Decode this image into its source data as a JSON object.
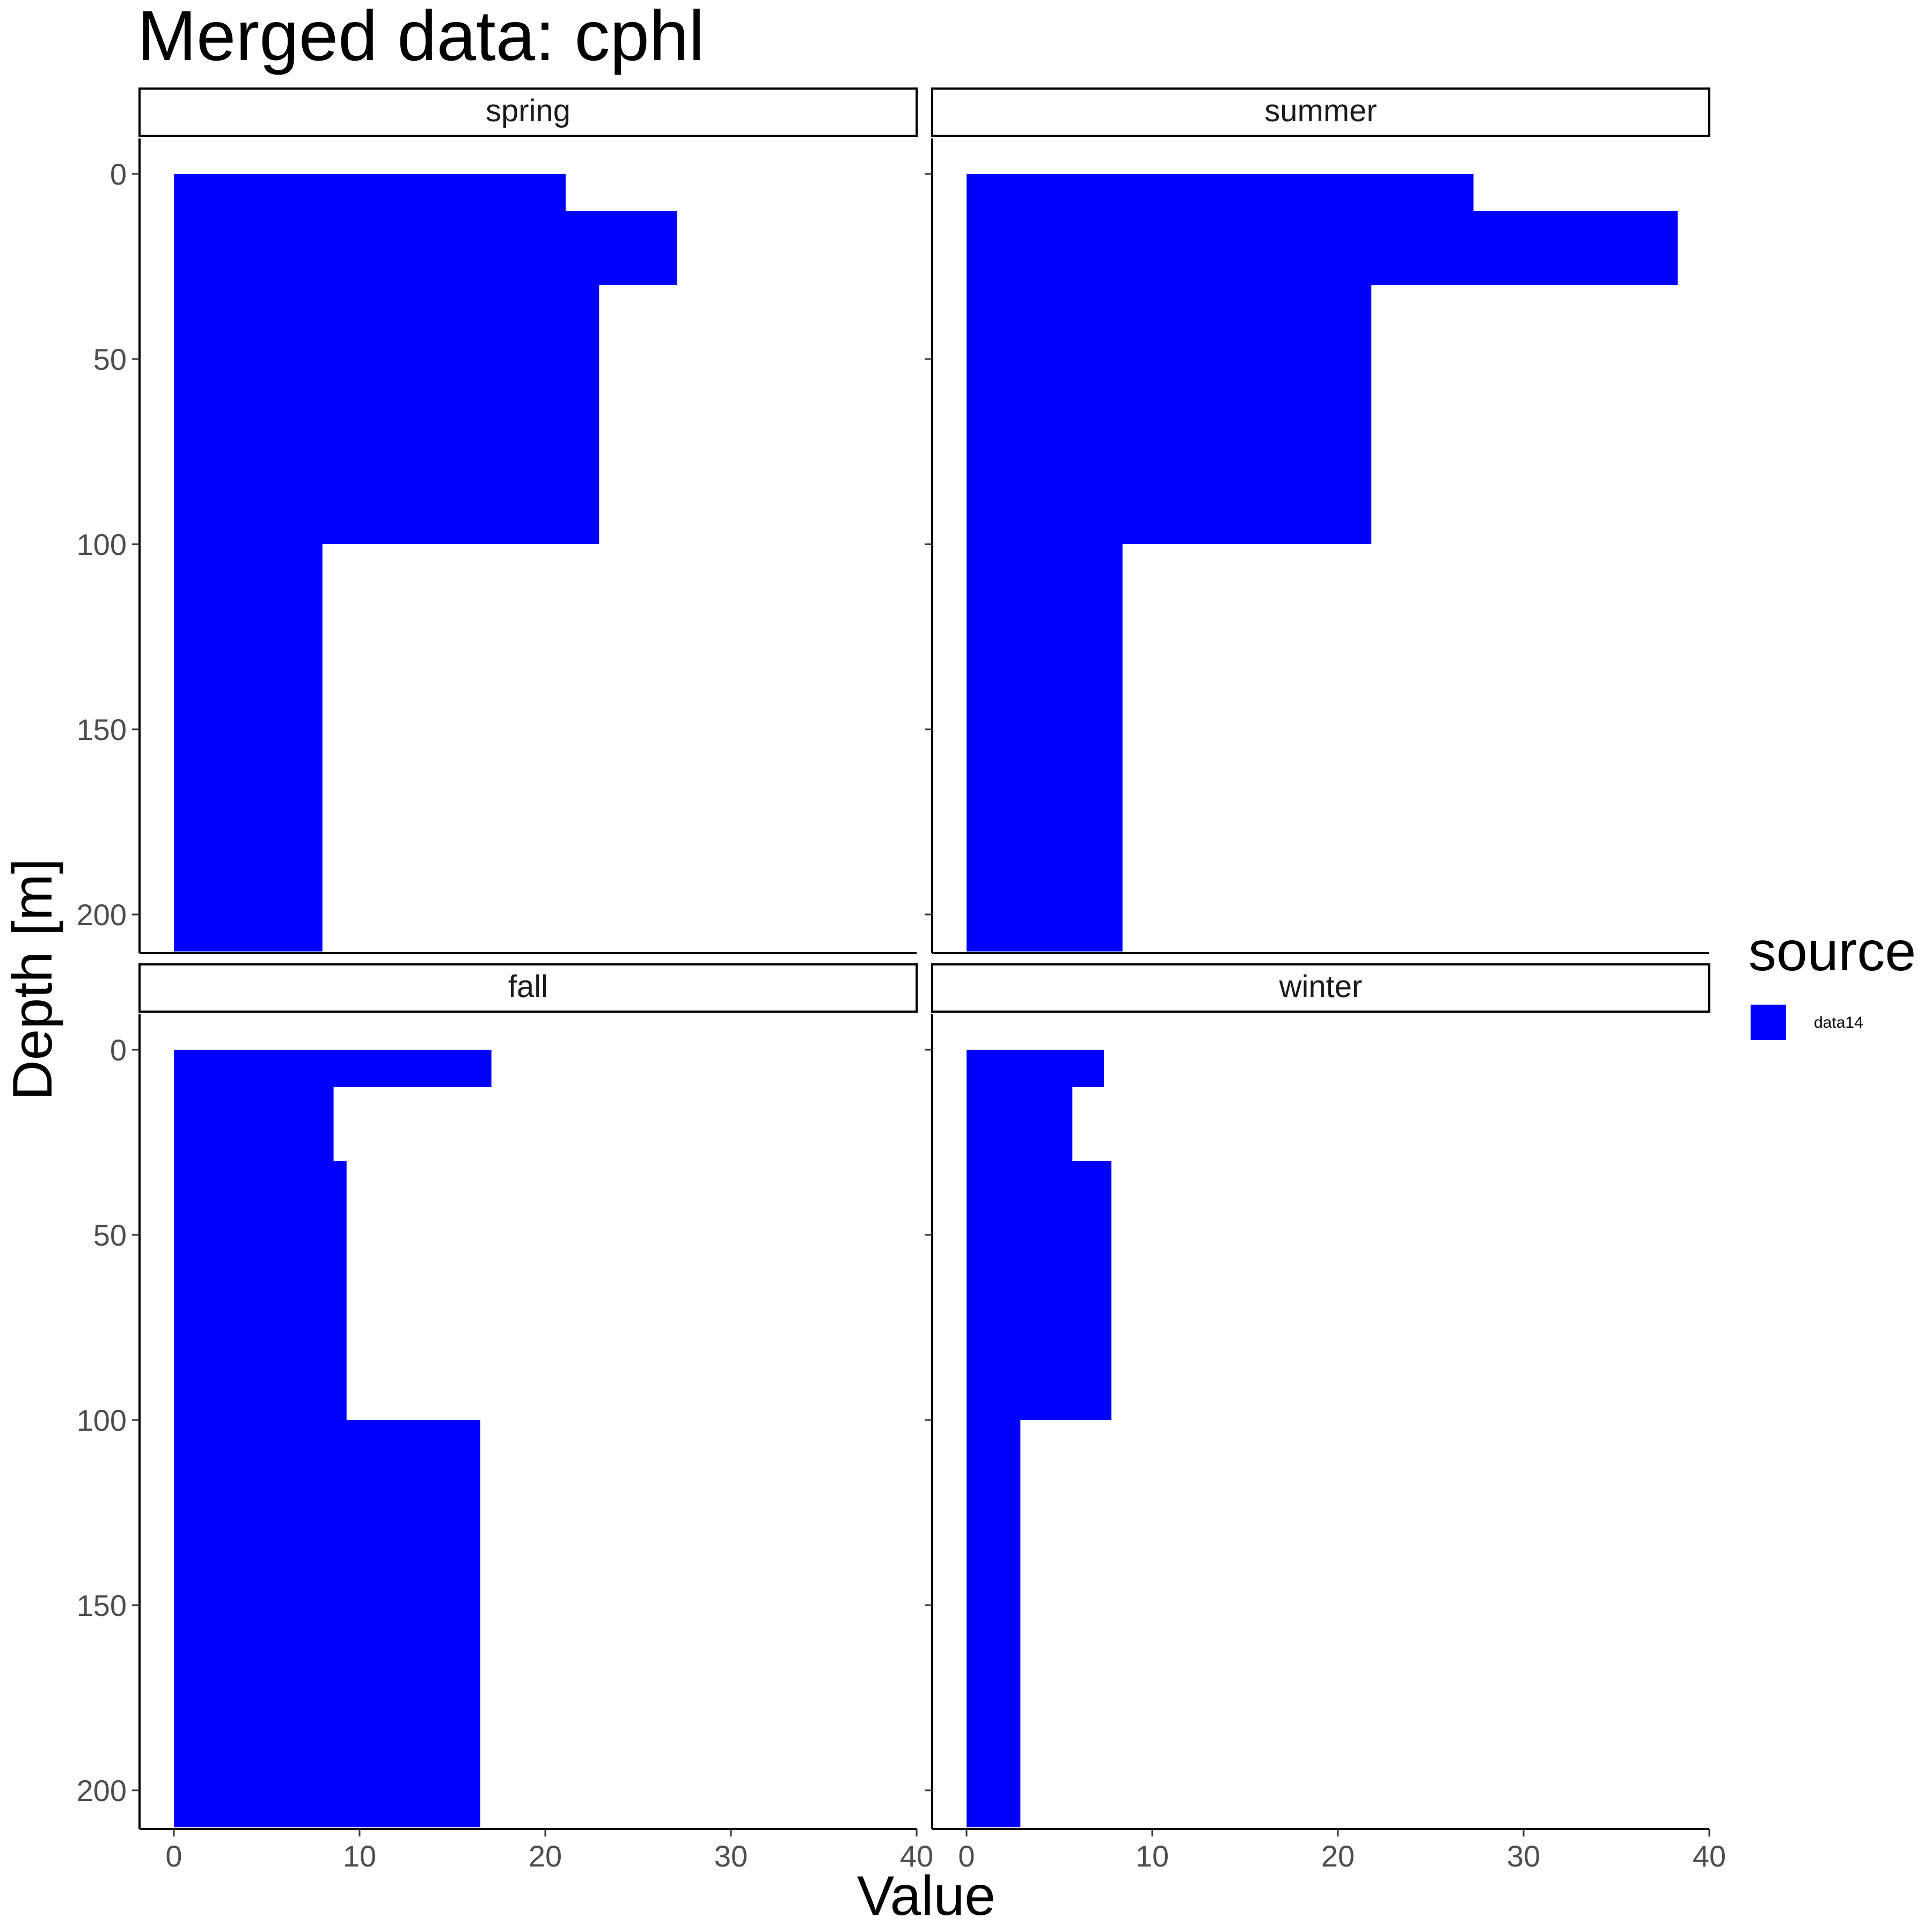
{
  "chart_data": {
    "type": "bar",
    "orientation": "horizontal",
    "title": "Merged data: cphl",
    "xlabel": "Value",
    "ylabel": "Depth [m]",
    "xlim": [
      0,
      40
    ],
    "ylim": [
      210,
      0
    ],
    "y_reversed": true,
    "x_ticks": [
      "0",
      "10",
      "20",
      "30",
      "40"
    ],
    "y_ticks": [
      "0",
      "50",
      "100",
      "150",
      "200"
    ],
    "grid": false,
    "legend": {
      "title": "source",
      "position": "right",
      "entries": [
        {
          "label": "data14",
          "color": "#0000ff"
        }
      ]
    },
    "series": [
      {
        "name": "data14",
        "color": "#0000ff"
      }
    ],
    "depth_bins": [
      [
        0,
        10
      ],
      [
        10,
        30
      ],
      [
        30,
        100
      ],
      [
        100,
        210
      ]
    ],
    "panels": [
      {
        "name": "spring",
        "values": [
          21.1,
          27.1,
          22.9,
          8.0
        ]
      },
      {
        "name": "summer",
        "values": [
          27.3,
          38.3,
          21.8,
          8.4
        ]
      },
      {
        "name": "fall",
        "values": [
          17.1,
          8.6,
          9.3,
          16.5
        ]
      },
      {
        "name": "winter",
        "values": [
          7.4,
          5.7,
          7.8,
          2.9
        ]
      }
    ]
  }
}
